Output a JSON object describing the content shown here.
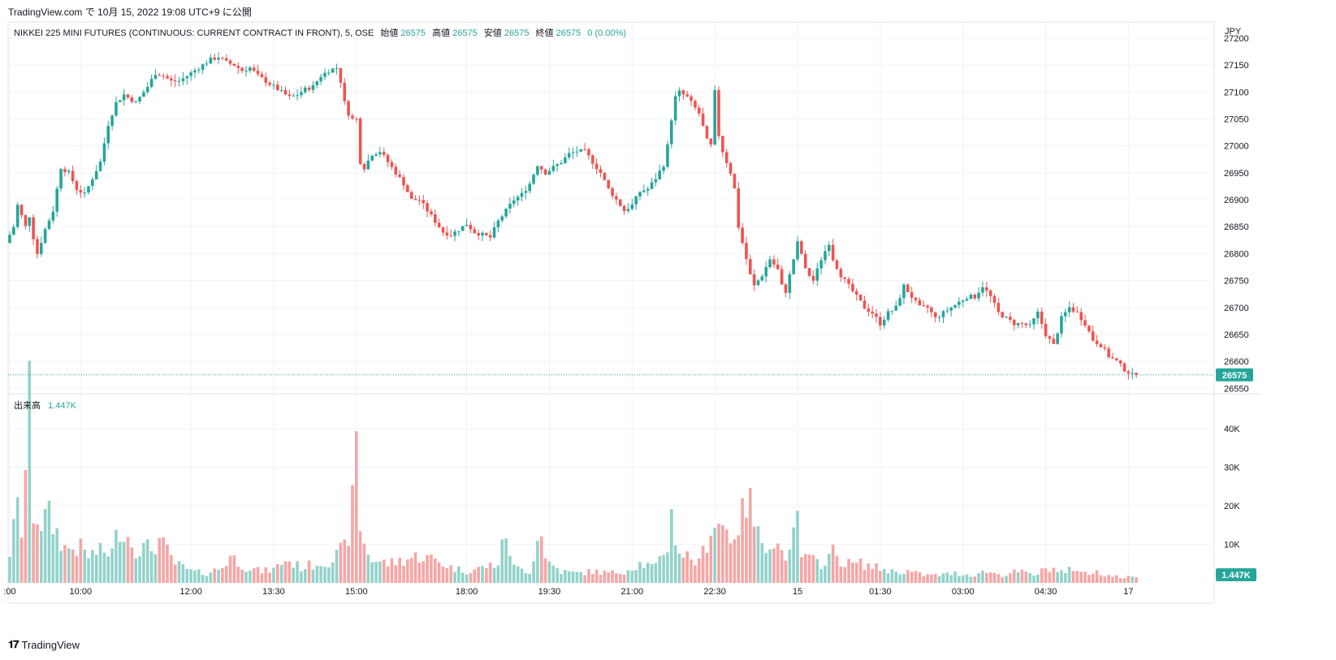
{
  "header": {
    "publish_line": "TradingView.com で 10月 15, 2022 19:08 UTC+9 に公開"
  },
  "legend": {
    "symbol": "NIKKEI 225 MINI FUTURES (CONTINUOUS: CURRENT CONTRACT IN FRONT), 5, OSE",
    "open_label": "始値",
    "open_value": "26575",
    "high_label": "高値",
    "high_value": "26575",
    "low_label": "安値",
    "low_value": "26575",
    "close_label": "終値",
    "close_value": "26575",
    "change": "0 (0.00%)"
  },
  "volume_legend": {
    "label": "出来高",
    "value": "1.447K"
  },
  "price_badge": "26575",
  "volume_badge": "1.447K",
  "currency": "JPY",
  "footer": {
    "brand": "TradingView"
  },
  "colors": {
    "up": "#26a69a",
    "down": "#ef5350",
    "vol_up": "#93d2cb",
    "vol_down": "#f5a6a5",
    "grid": "#f0f3fa",
    "axis_text": "#131722",
    "price_line": "#26a69a"
  },
  "chart_data": {
    "type": "candlestick",
    "interval": "5",
    "exchange": "OSE",
    "currency": "JPY",
    "price_axis": {
      "range": [
        26540,
        27230
      ],
      "ticks": [
        27200,
        27150,
        27100,
        27050,
        27000,
        26950,
        26900,
        26850,
        26800,
        26750,
        26700,
        26650,
        26600,
        26550
      ]
    },
    "volume_axis": {
      "range": [
        0,
        47000
      ],
      "ticks": [
        10000,
        20000,
        30000,
        40000
      ],
      "tick_labels": [
        "10K",
        "20K",
        "30K",
        "40K"
      ]
    },
    "time_axis": {
      "labels": [
        ":00",
        "10:00",
        "12:00",
        "13:30",
        "15:00",
        "18:00",
        "19:30",
        "21:00",
        "22:30",
        "15",
        "01:30",
        "03:00",
        "04:30",
        "17"
      ],
      "label_bar_index": [
        0,
        18,
        46,
        67,
        88,
        116,
        137,
        158,
        179,
        200,
        221,
        242,
        263,
        284
      ]
    },
    "last_price": 26575,
    "last_volume": 1447,
    "keypoints": [
      [
        0,
        26820
      ],
      [
        2,
        26850
      ],
      [
        3,
        26890
      ],
      [
        5,
        26850
      ],
      [
        6,
        26870
      ],
      [
        7,
        26830
      ],
      [
        8,
        26800
      ],
      [
        10,
        26845
      ],
      [
        12,
        26880
      ],
      [
        14,
        26960
      ],
      [
        16,
        26950
      ],
      [
        18,
        26920
      ],
      [
        20,
        26910
      ],
      [
        22,
        26940
      ],
      [
        24,
        26970
      ],
      [
        26,
        27040
      ],
      [
        28,
        27080
      ],
      [
        30,
        27095
      ],
      [
        33,
        27080
      ],
      [
        36,
        27110
      ],
      [
        38,
        27135
      ],
      [
        40,
        27130
      ],
      [
        42,
        27120
      ],
      [
        44,
        27120
      ],
      [
        46,
        27130
      ],
      [
        48,
        27140
      ],
      [
        50,
        27150
      ],
      [
        52,
        27160
      ],
      [
        54,
        27165
      ],
      [
        56,
        27155
      ],
      [
        58,
        27150
      ],
      [
        60,
        27140
      ],
      [
        62,
        27145
      ],
      [
        64,
        27130
      ],
      [
        66,
        27120
      ],
      [
        68,
        27110
      ],
      [
        70,
        27100
      ],
      [
        72,
        27090
      ],
      [
        74,
        27095
      ],
      [
        76,
        27105
      ],
      [
        78,
        27110
      ],
      [
        80,
        27130
      ],
      [
        82,
        27140
      ],
      [
        84,
        27145
      ],
      [
        85,
        27120
      ],
      [
        86,
        27080
      ],
      [
        87,
        27060
      ],
      [
        88,
        27050
      ],
      [
        89,
        27050
      ],
      [
        90,
        26970
      ],
      [
        91,
        26960
      ],
      [
        93,
        26985
      ],
      [
        95,
        26990
      ],
      [
        97,
        26970
      ],
      [
        99,
        26950
      ],
      [
        101,
        26930
      ],
      [
        103,
        26900
      ],
      [
        105,
        26900
      ],
      [
        107,
        26880
      ],
      [
        109,
        26860
      ],
      [
        111,
        26840
      ],
      [
        113,
        26835
      ],
      [
        115,
        26845
      ],
      [
        117,
        26855
      ],
      [
        119,
        26840
      ],
      [
        121,
        26835
      ],
      [
        123,
        26830
      ],
      [
        125,
        26860
      ],
      [
        127,
        26880
      ],
      [
        129,
        26900
      ],
      [
        131,
        26910
      ],
      [
        133,
        26930
      ],
      [
        135,
        26965
      ],
      [
        137,
        26950
      ],
      [
        139,
        26960
      ],
      [
        141,
        26970
      ],
      [
        143,
        26985
      ],
      [
        145,
        26990
      ],
      [
        147,
        26990
      ],
      [
        149,
        26970
      ],
      [
        151,
        26950
      ],
      [
        153,
        26920
      ],
      [
        155,
        26900
      ],
      [
        157,
        26880
      ],
      [
        159,
        26890
      ],
      [
        161,
        26915
      ],
      [
        163,
        26920
      ],
      [
        165,
        26940
      ],
      [
        167,
        26965
      ],
      [
        168,
        27000
      ],
      [
        169,
        27050
      ],
      [
        170,
        27090
      ],
      [
        171,
        27100
      ],
      [
        173,
        27090
      ],
      [
        175,
        27070
      ],
      [
        176,
        27060
      ],
      [
        178,
        27010
      ],
      [
        179,
        27000
      ],
      [
        180,
        27100
      ],
      [
        181,
        27020
      ],
      [
        182,
        26990
      ],
      [
        183,
        26970
      ],
      [
        184,
        26950
      ],
      [
        185,
        26920
      ],
      [
        186,
        26850
      ],
      [
        187,
        26820
      ],
      [
        188,
        26790
      ],
      [
        189,
        26760
      ],
      [
        190,
        26740
      ],
      [
        192,
        26760
      ],
      [
        194,
        26790
      ],
      [
        196,
        26770
      ],
      [
        197,
        26740
      ],
      [
        198,
        26730
      ],
      [
        199,
        26760
      ],
      [
        200,
        26790
      ],
      [
        201,
        26820
      ],
      [
        202,
        26800
      ],
      [
        203,
        26770
      ],
      [
        205,
        26750
      ],
      [
        207,
        26790
      ],
      [
        209,
        26820
      ],
      [
        210,
        26790
      ],
      [
        212,
        26760
      ],
      [
        214,
        26740
      ],
      [
        216,
        26720
      ],
      [
        218,
        26700
      ],
      [
        220,
        26690
      ],
      [
        222,
        26670
      ],
      [
        224,
        26690
      ],
      [
        226,
        26700
      ],
      [
        228,
        26740
      ],
      [
        230,
        26720
      ],
      [
        232,
        26700
      ],
      [
        234,
        26700
      ],
      [
        236,
        26680
      ],
      [
        238,
        26690
      ],
      [
        240,
        26700
      ],
      [
        242,
        26710
      ],
      [
        244,
        26720
      ],
      [
        246,
        26720
      ],
      [
        248,
        26740
      ],
      [
        250,
        26720
      ],
      [
        252,
        26690
      ],
      [
        254,
        26680
      ],
      [
        256,
        26670
      ],
      [
        258,
        26670
      ],
      [
        260,
        26665
      ],
      [
        262,
        26690
      ],
      [
        264,
        26650
      ],
      [
        266,
        26630
      ],
      [
        268,
        26680
      ],
      [
        270,
        26700
      ],
      [
        272,
        26690
      ],
      [
        274,
        26670
      ],
      [
        276,
        26640
      ],
      [
        278,
        26630
      ],
      [
        280,
        26610
      ],
      [
        282,
        26600
      ],
      [
        284,
        26585
      ],
      [
        286,
        26575
      ]
    ],
    "volume_keypoints": [
      [
        0,
        8000
      ],
      [
        2,
        19000
      ],
      [
        3,
        14000
      ],
      [
        5,
        45000
      ],
      [
        6,
        19000
      ],
      [
        8,
        16000
      ],
      [
        10,
        17000
      ],
      [
        14,
        9000
      ],
      [
        18,
        9000
      ],
      [
        20,
        7000
      ],
      [
        22,
        8000
      ],
      [
        26,
        8000
      ],
      [
        28,
        15000
      ],
      [
        32,
        9000
      ],
      [
        36,
        9000
      ],
      [
        38,
        11000
      ],
      [
        40,
        8000
      ],
      [
        42,
        5000
      ],
      [
        46,
        3000
      ],
      [
        50,
        2500
      ],
      [
        54,
        4000
      ],
      [
        56,
        7000
      ],
      [
        60,
        4000
      ],
      [
        64,
        3000
      ],
      [
        67,
        3500
      ],
      [
        70,
        6000
      ],
      [
        74,
        4000
      ],
      [
        78,
        5000
      ],
      [
        82,
        6000
      ],
      [
        85,
        9000
      ],
      [
        86,
        13000
      ],
      [
        87,
        20000
      ],
      [
        88,
        35000
      ],
      [
        89,
        15000
      ],
      [
        90,
        10000
      ],
      [
        92,
        6000
      ],
      [
        96,
        5000
      ],
      [
        100,
        6000
      ],
      [
        104,
        7000
      ],
      [
        108,
        6000
      ],
      [
        112,
        4000
      ],
      [
        116,
        3000
      ],
      [
        120,
        4000
      ],
      [
        124,
        5000
      ],
      [
        126,
        13000
      ],
      [
        128,
        4000
      ],
      [
        132,
        3000
      ],
      [
        135,
        15000
      ],
      [
        136,
        6000
      ],
      [
        140,
        3000
      ],
      [
        144,
        2500
      ],
      [
        148,
        3000
      ],
      [
        152,
        2500
      ],
      [
        156,
        3000
      ],
      [
        160,
        5000
      ],
      [
        164,
        4000
      ],
      [
        167,
        10000
      ],
      [
        168,
        17000
      ],
      [
        170,
        8000
      ],
      [
        172,
        7000
      ],
      [
        175,
        5000
      ],
      [
        178,
        14000
      ],
      [
        179,
        16000
      ],
      [
        181,
        15000
      ],
      [
        183,
        12000
      ],
      [
        186,
        17000
      ],
      [
        187,
        22000
      ],
      [
        188,
        20000
      ],
      [
        190,
        12000
      ],
      [
        192,
        11000
      ],
      [
        194,
        11000
      ],
      [
        196,
        8000
      ],
      [
        198,
        7000
      ],
      [
        200,
        16000
      ],
      [
        201,
        7000
      ],
      [
        203,
        6000
      ],
      [
        206,
        5000
      ],
      [
        209,
        8000
      ],
      [
        212,
        5000
      ],
      [
        216,
        5000
      ],
      [
        220,
        4000
      ],
      [
        224,
        3000
      ],
      [
        228,
        3000
      ],
      [
        232,
        2000
      ],
      [
        236,
        2000
      ],
      [
        240,
        2500
      ],
      [
        244,
        2000
      ],
      [
        248,
        3000
      ],
      [
        252,
        2000
      ],
      [
        256,
        3000
      ],
      [
        260,
        2000
      ],
      [
        264,
        4000
      ],
      [
        268,
        2500
      ],
      [
        270,
        4000
      ],
      [
        274,
        2000
      ],
      [
        276,
        3500
      ],
      [
        278,
        2000
      ],
      [
        282,
        1500
      ],
      [
        286,
        1447
      ]
    ]
  }
}
